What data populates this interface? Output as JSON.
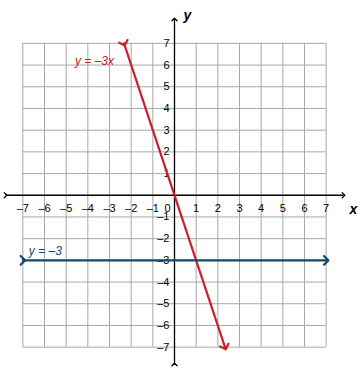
{
  "chart_data": {
    "type": "line",
    "xlabel": "x",
    "ylabel": "y",
    "xlim": [
      -7.8,
      7.8
    ],
    "ylim": [
      -7.8,
      8.1
    ],
    "xticks": [
      {
        "value": -7,
        "label": "–7"
      },
      {
        "value": -6,
        "label": "–6"
      },
      {
        "value": -5,
        "label": "–5"
      },
      {
        "value": -4,
        "label": "–4"
      },
      {
        "value": -3,
        "label": "–3"
      },
      {
        "value": -2,
        "label": "–2"
      },
      {
        "value": -1,
        "label": "–1"
      },
      0,
      1,
      2,
      3,
      4,
      5,
      6,
      7
    ],
    "yticks": [
      {
        "value": -7,
        "label": "–7"
      },
      {
        "value": -6,
        "label": "–6"
      },
      {
        "value": -5,
        "label": "–5"
      },
      {
        "value": -4,
        "label": "–4"
      },
      {
        "value": -3,
        "label": "–3"
      },
      {
        "value": -2,
        "label": "–2"
      },
      {
        "value": -1,
        "label": "–1"
      },
      1,
      2,
      3,
      4,
      5,
      6,
      7
    ],
    "grid": true,
    "series": [
      {
        "name": "y = –3x",
        "color": "#c8202f",
        "x": [
          -2.33,
          2.33
        ],
        "values": [
          7,
          -7
        ],
        "marker": "arrow"
      },
      {
        "name": "y = –3",
        "color": "#164a6b",
        "x": [
          -7,
          7
        ],
        "values": [
          -3,
          -3
        ],
        "marker": "arrow"
      }
    ]
  }
}
